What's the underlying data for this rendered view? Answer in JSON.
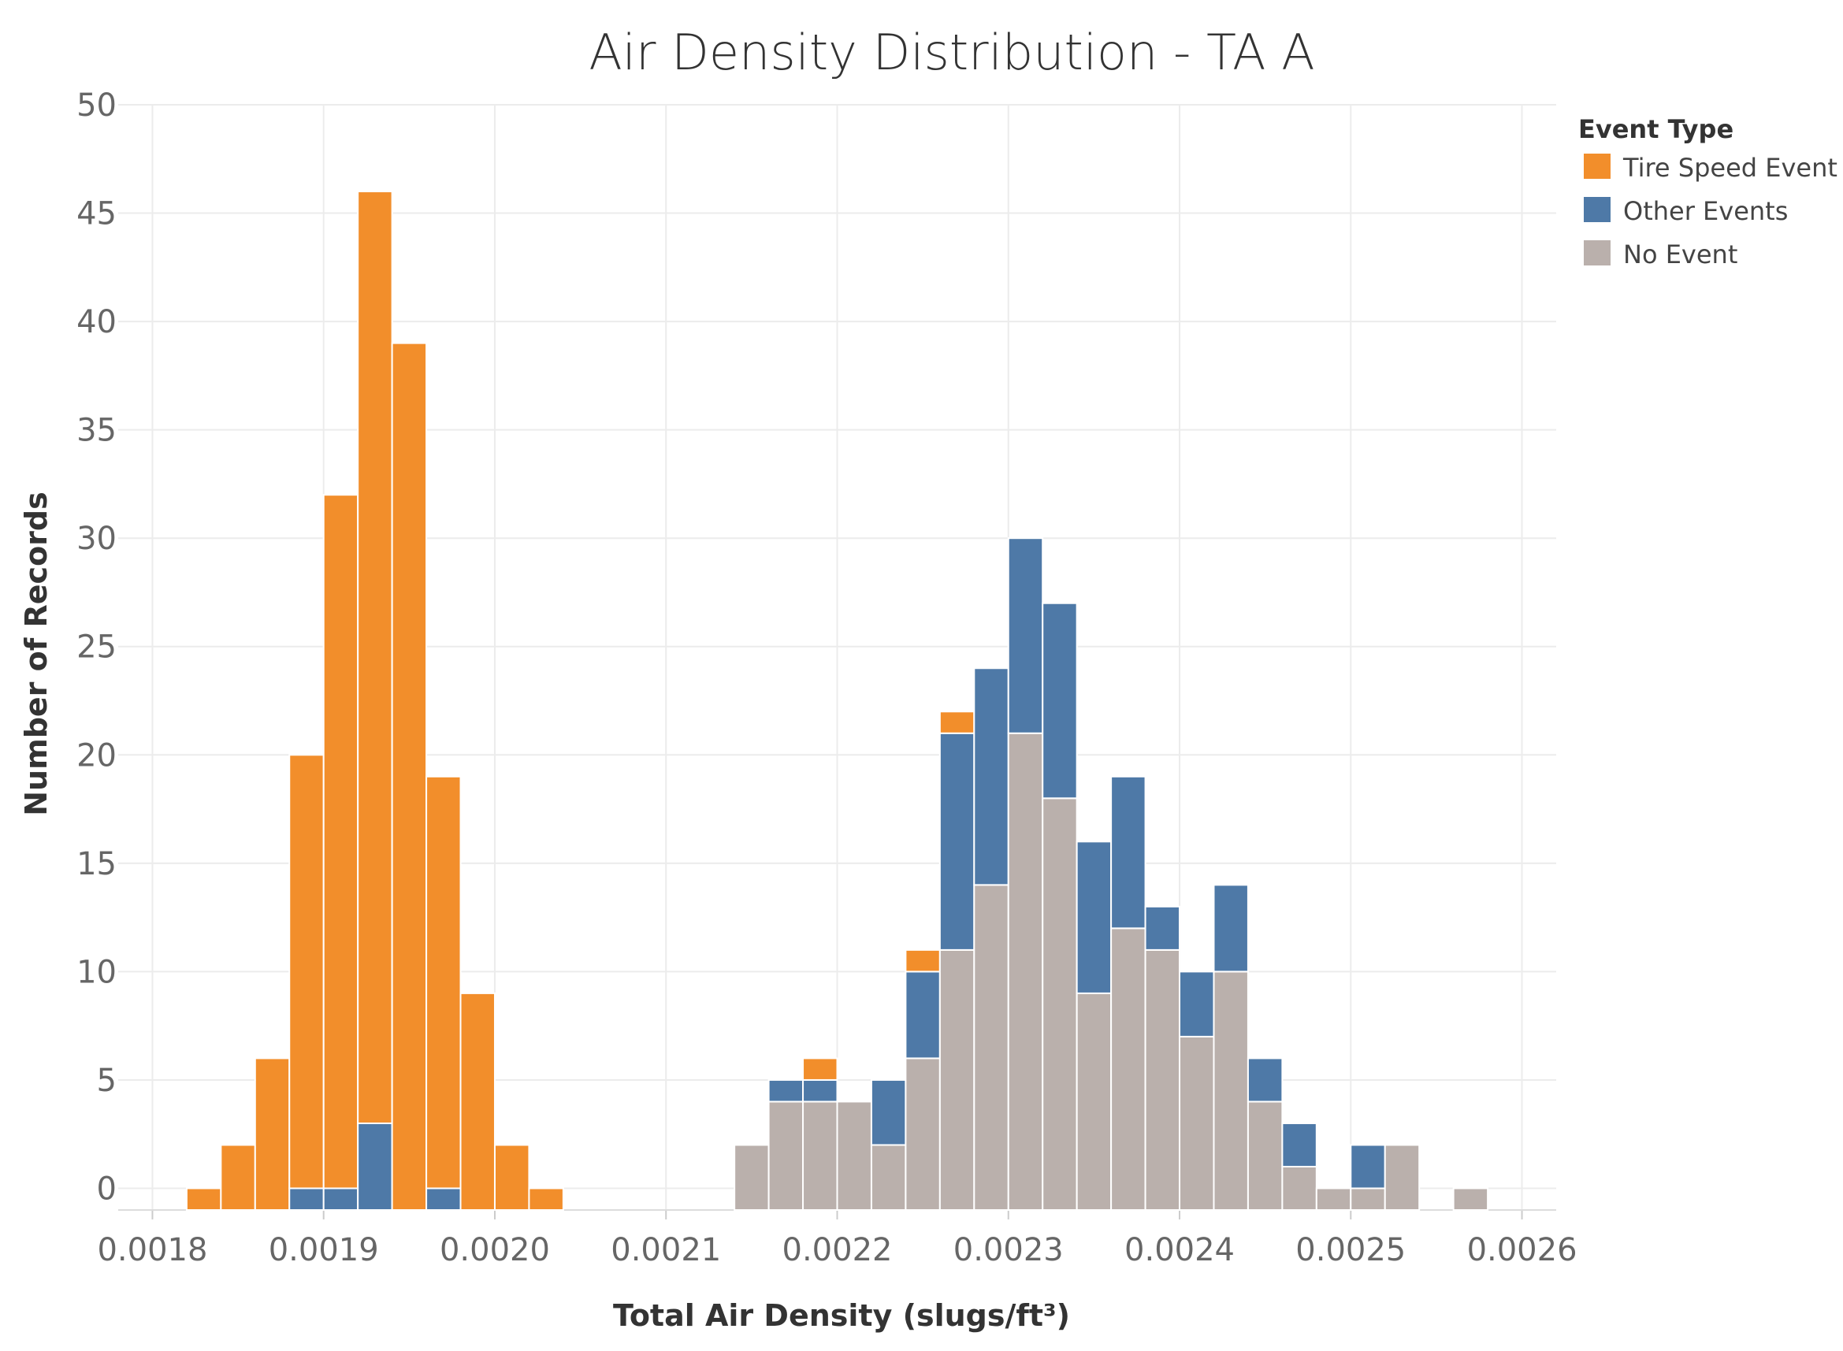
{
  "chart_data": {
    "type": "bar",
    "subtype": "stacked-histogram",
    "title": "Air Density Distribution - TA A",
    "xlabel": "Total Air Density (slugs/ft³)",
    "ylabel": "Number of Records",
    "xlim": [
      0.00178,
      0.00262
    ],
    "ylim": [
      -1,
      50
    ],
    "x_ticks": [
      "0.0018",
      "0.0019",
      "0.0020",
      "0.0021",
      "0.0022",
      "0.0023",
      "0.0024",
      "0.0025",
      "0.0026"
    ],
    "x_tick_values": [
      0.0018,
      0.0019,
      0.002,
      0.0021,
      0.0022,
      0.0023,
      0.0024,
      0.0025,
      0.0026
    ],
    "y_ticks": [
      "0",
      "5",
      "10",
      "15",
      "20",
      "25",
      "30",
      "35",
      "40",
      "45",
      "50"
    ],
    "y_tick_values": [
      0,
      5,
      10,
      15,
      20,
      25,
      30,
      35,
      40,
      45,
      50
    ],
    "bin_width": 2e-05,
    "bin_starts": [
      0.00182,
      0.00184,
      0.00186,
      0.00188,
      0.0019,
      0.00192,
      0.00194,
      0.00196,
      0.00198,
      0.002,
      0.00202,
      0.00214,
      0.00216,
      0.00218,
      0.0022,
      0.00222,
      0.00224,
      0.00226,
      0.00228,
      0.0023,
      0.00232,
      0.00234,
      0.00236,
      0.00238,
      0.0024,
      0.00242,
      0.00244,
      0.00246,
      0.00248,
      0.0025,
      0.00252,
      0.00256
    ],
    "series": [
      {
        "name": "No Event",
        "color": "#bab0ac",
        "values": [
          0,
          0,
          0,
          0,
          0,
          0,
          0,
          0,
          0,
          0,
          0,
          3,
          5,
          5,
          5,
          3,
          7,
          12,
          15,
          22,
          19,
          10,
          13,
          12,
          8,
          11,
          5,
          2,
          1,
          1,
          3,
          1
        ]
      },
      {
        "name": "Other Events",
        "color": "#4e79a7",
        "values": [
          0,
          0,
          0,
          1,
          1,
          4,
          0,
          1,
          0,
          0,
          0,
          0,
          1,
          1,
          0,
          3,
          4,
          10,
          10,
          9,
          9,
          7,
          7,
          2,
          3,
          4,
          2,
          2,
          0,
          2,
          0,
          0
        ]
      },
      {
        "name": "Tire Speed Event",
        "color": "#f28e2b",
        "values": [
          1,
          3,
          7,
          20,
          32,
          43,
          40,
          19,
          10,
          3,
          1,
          0,
          0,
          1,
          0,
          0,
          1,
          1,
          0,
          0,
          0,
          0,
          0,
          0,
          0,
          0,
          0,
          0,
          0,
          0,
          0,
          0
        ]
      }
    ],
    "legend": {
      "title": "Event Type",
      "position": "top-right",
      "items": [
        "Tire Speed Event",
        "Other Events",
        "No Event"
      ]
    },
    "grid": true
  }
}
